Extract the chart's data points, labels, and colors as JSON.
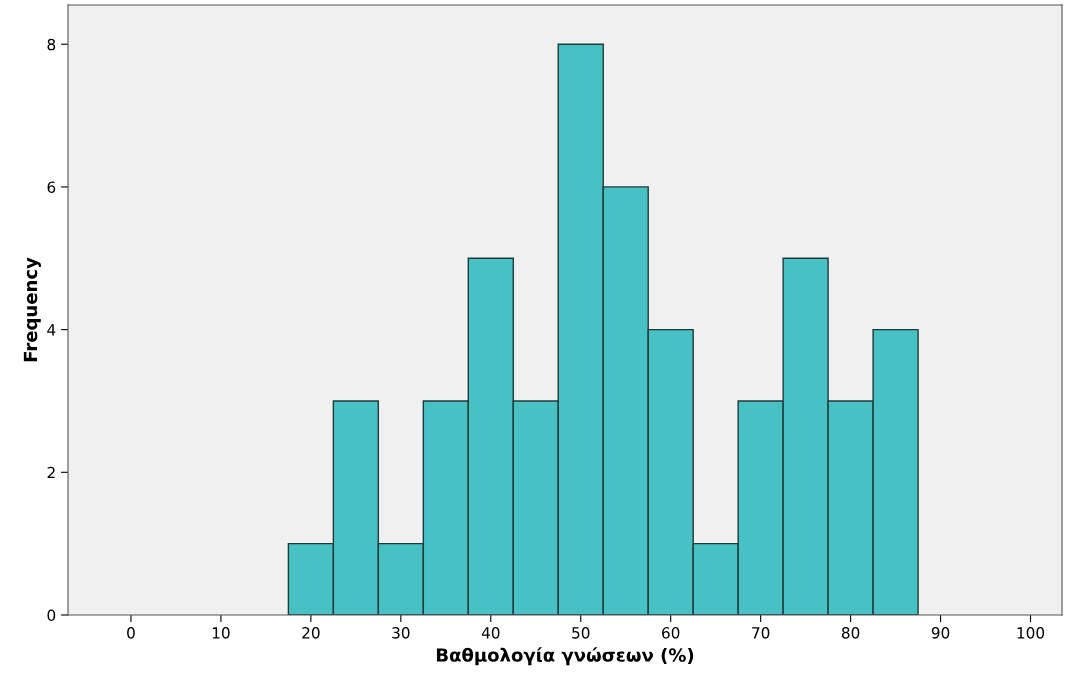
{
  "chart_data": {
    "type": "histogram",
    "xlabel": "Βαθμολογία γνώσεων (%)",
    "ylabel": "Frequency",
    "bins": [
      17.5,
      22.5,
      27.5,
      32.5,
      37.5,
      42.5,
      47.5,
      52.5,
      57.5,
      62.5,
      67.5,
      72.5,
      77.5,
      82.5,
      87.5
    ],
    "values": [
      1,
      3,
      1,
      3,
      5,
      3,
      8,
      6,
      4,
      1,
      3,
      5,
      3,
      4
    ],
    "color": "#48c1c4",
    "xlim": [
      -7,
      103.5
    ],
    "xticks": [
      0,
      10,
      20,
      30,
      40,
      50,
      60,
      70,
      80,
      90,
      100
    ],
    "ylim": [
      0,
      8.55
    ],
    "yticks": [
      0,
      2,
      4,
      6,
      8
    ],
    "grid": false,
    "legend": false
  }
}
